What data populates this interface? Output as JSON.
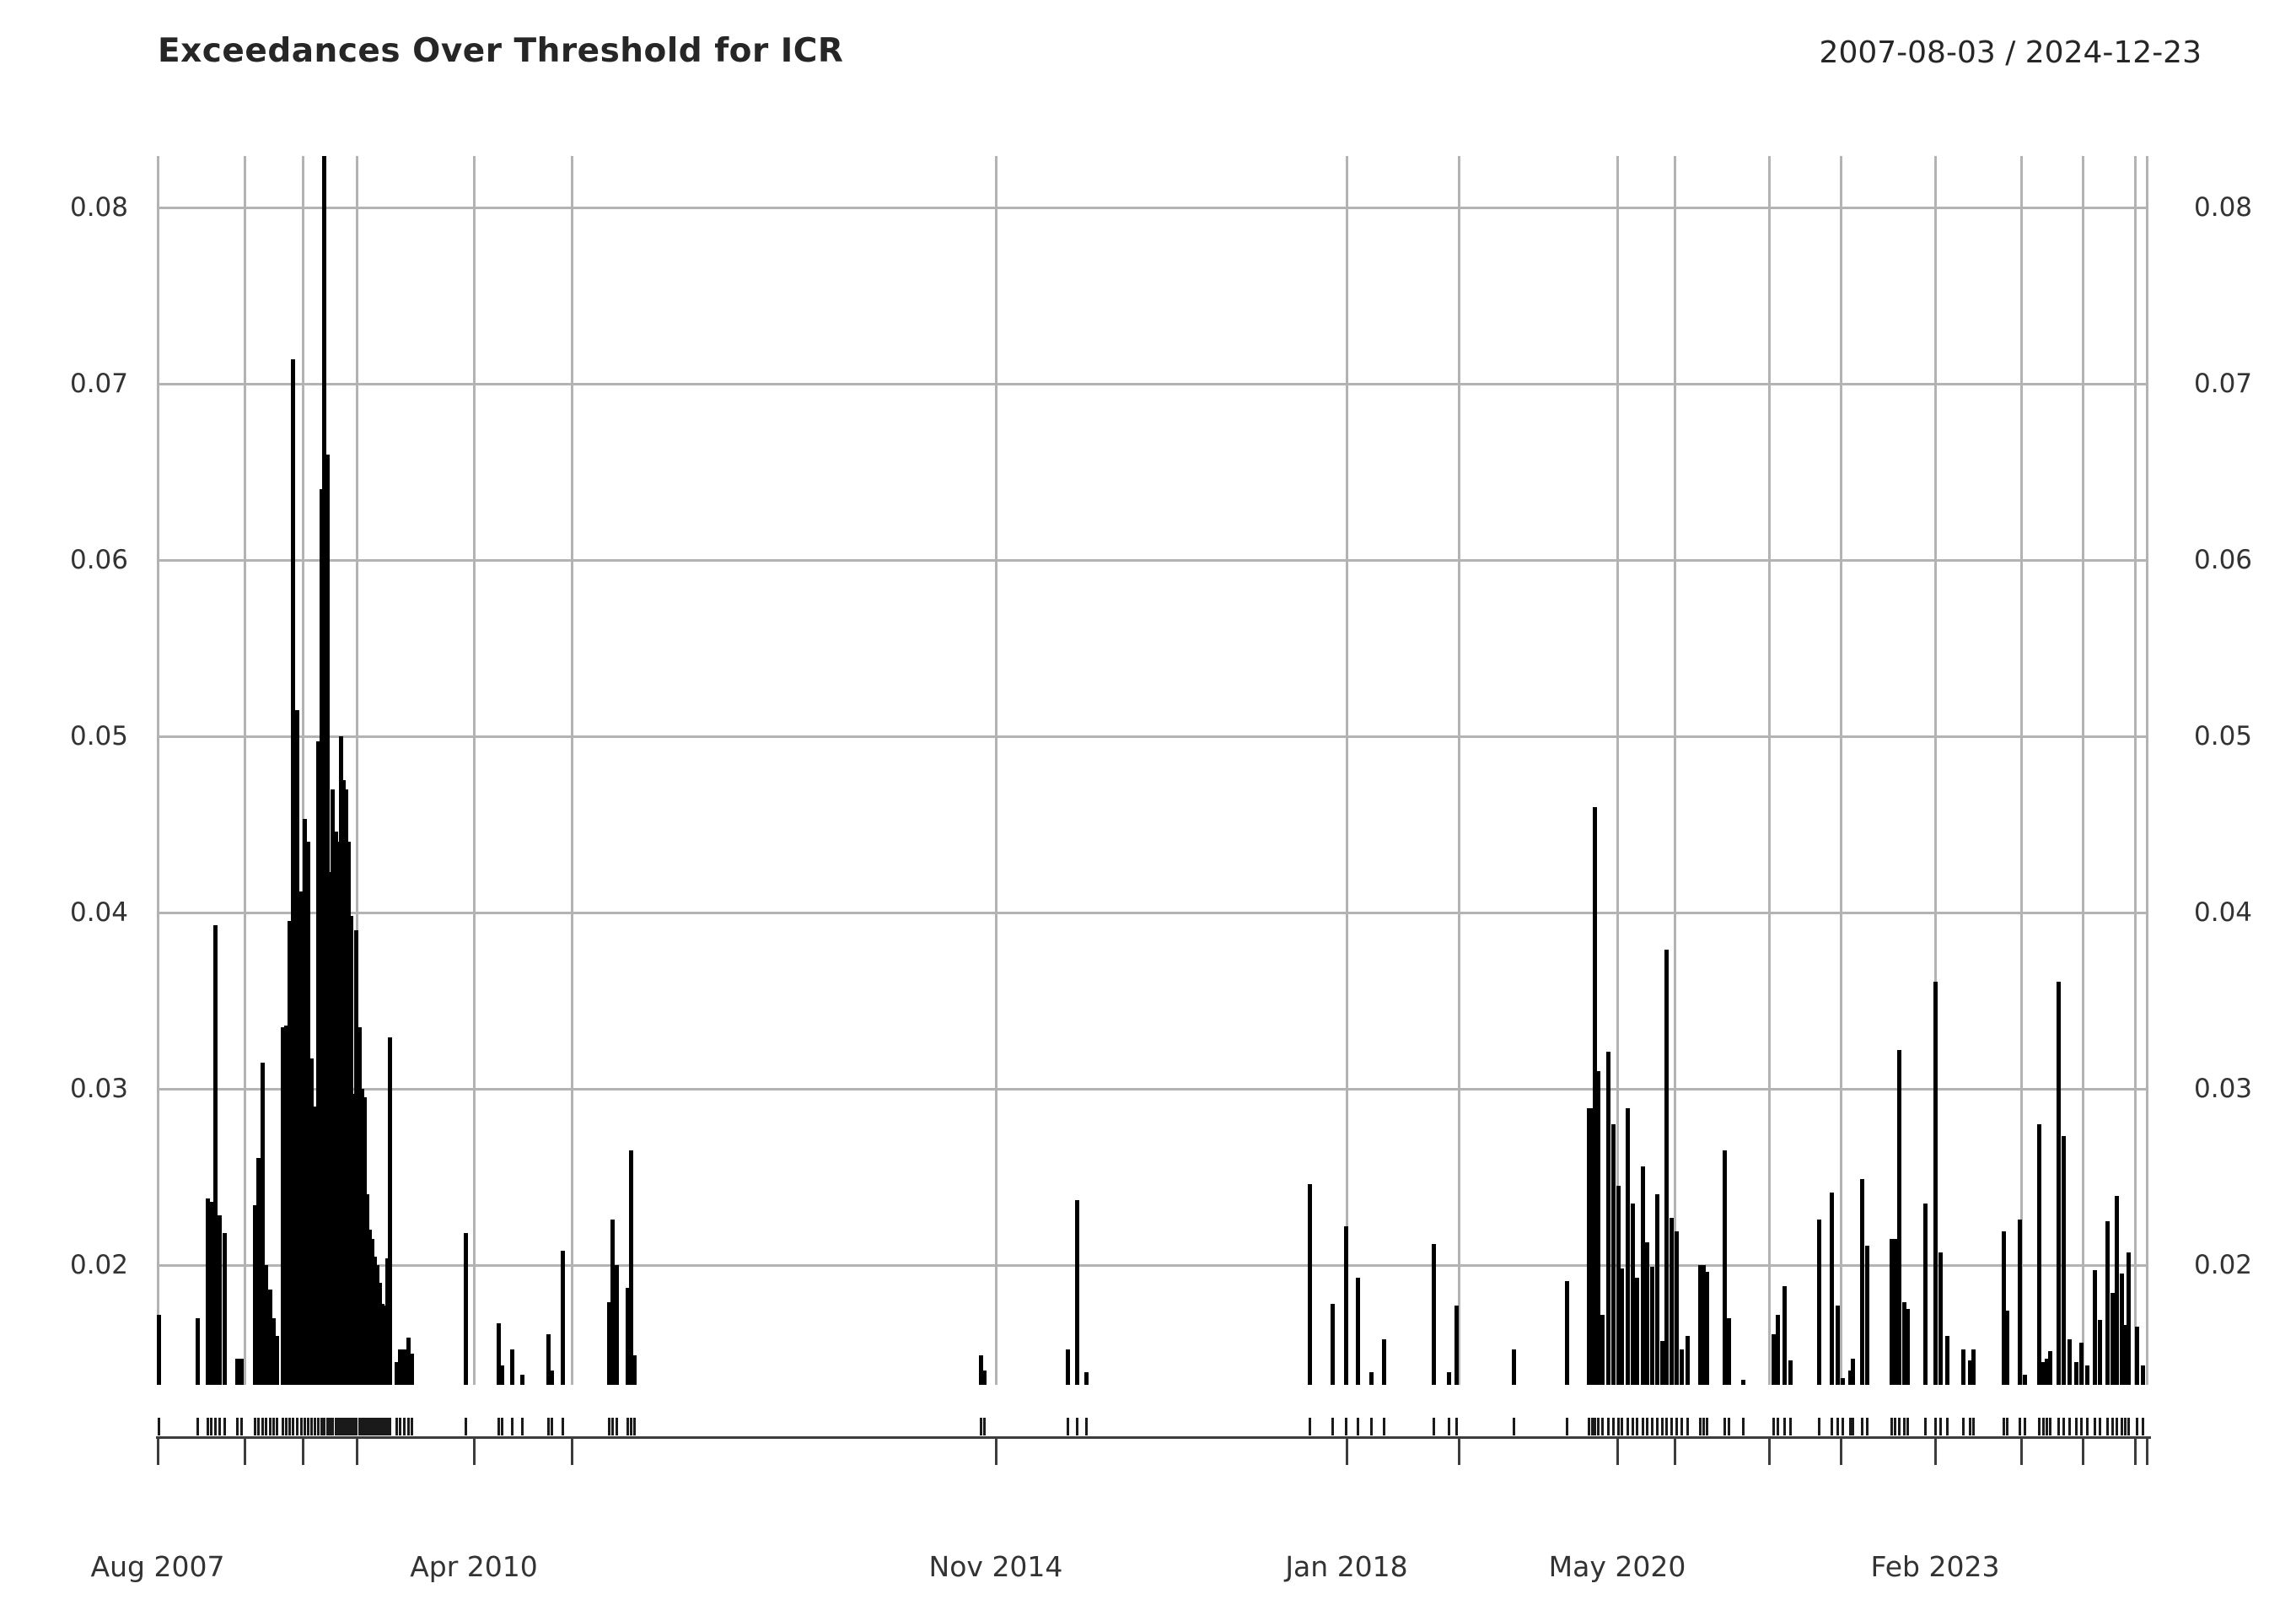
{
  "header": {
    "title": "Exceedances Over Threshold for ICR",
    "date_range": "2007-08-03 / 2024-12-23"
  },
  "colors": {
    "bar": "#000000",
    "grid": "#b3b3b3",
    "axis": "#3c3c3c",
    "text": "#262626",
    "tick_text": "#333333",
    "background": "#ffffff"
  },
  "chart_data": {
    "type": "bar",
    "title": "Exceedances Over Threshold for ICR",
    "subtitle": "2007-08-03 / 2024-12-23",
    "xlabel": "",
    "ylabel": "",
    "x_unit": "event date (irregular, event-index spacing)",
    "ylim": [
      0.0132,
      0.0829
    ],
    "baseline_value": 0.0132,
    "grid": true,
    "legend": "none",
    "rug": "event dates shown as tick rug above x-axis",
    "y_ticks": [
      {
        "value": 0.02,
        "label": "0.02"
      },
      {
        "value": 0.03,
        "label": "0.03"
      },
      {
        "value": 0.04,
        "label": "0.04"
      },
      {
        "value": 0.05,
        "label": "0.05"
      },
      {
        "value": 0.06,
        "label": "0.06"
      },
      {
        "value": 0.07,
        "label": "0.07"
      },
      {
        "value": 0.08,
        "label": "0.08"
      }
    ],
    "x_ticks": [
      {
        "x": 187,
        "label": "Aug 2007"
      },
      {
        "x": 290,
        "label": ""
      },
      {
        "x": 359,
        "label": ""
      },
      {
        "x": 423,
        "label": ""
      },
      {
        "x": 562,
        "label": "Apr 2010"
      },
      {
        "x": 678,
        "label": ""
      },
      {
        "x": 1181,
        "label": "Nov 2014"
      },
      {
        "x": 1597,
        "label": "Jan 2018"
      },
      {
        "x": 1730,
        "label": ""
      },
      {
        "x": 1918,
        "label": "May 2020"
      },
      {
        "x": 1986,
        "label": ""
      },
      {
        "x": 2098,
        "label": ""
      },
      {
        "x": 2183,
        "label": ""
      },
      {
        "x": 2295,
        "label": "Feb 2023"
      },
      {
        "x": 2397,
        "label": ""
      },
      {
        "x": 2470,
        "label": ""
      },
      {
        "x": 2532,
        "label": ""
      },
      {
        "x": 2546,
        "label": ""
      }
    ],
    "bars": [
      [
        188,
        0.0172
      ],
      [
        234,
        0.017
      ],
      [
        246,
        0.0238
      ],
      [
        250,
        0.0236
      ],
      [
        255,
        0.0393
      ],
      [
        260,
        0.0228
      ],
      [
        266,
        0.0218
      ],
      [
        281,
        0.0147
      ],
      [
        286,
        0.0147
      ],
      [
        302,
        0.0234
      ],
      [
        306,
        0.0261
      ],
      [
        311,
        0.0315
      ],
      [
        315,
        0.02
      ],
      [
        320,
        0.0186
      ],
      [
        324,
        0.017
      ],
      [
        328,
        0.016
      ],
      [
        335,
        0.0335
      ],
      [
        339,
        0.0336
      ],
      [
        343,
        0.0395
      ],
      [
        347,
        0.0714
      ],
      [
        352,
        0.0515
      ],
      [
        357,
        0.0412
      ],
      [
        361,
        0.0453
      ],
      [
        365,
        0.044
      ],
      [
        369,
        0.0317
      ],
      [
        373,
        0.029
      ],
      [
        377,
        0.0497
      ],
      [
        381,
        0.064
      ],
      [
        384,
        0.0829
      ],
      [
        388,
        0.066
      ],
      [
        391,
        0.0423
      ],
      [
        394,
        0.047
      ],
      [
        398,
        0.0446
      ],
      [
        401,
        0.044
      ],
      [
        404,
        0.05
      ],
      [
        407,
        0.0475
      ],
      [
        410,
        0.047
      ],
      [
        413,
        0.044
      ],
      [
        416,
        0.0398
      ],
      [
        419,
        0.0297
      ],
      [
        422,
        0.039
      ],
      [
        426,
        0.0335
      ],
      [
        429,
        0.03
      ],
      [
        432,
        0.0295
      ],
      [
        435,
        0.024
      ],
      [
        438,
        0.022
      ],
      [
        441,
        0.0215
      ],
      [
        444,
        0.0205
      ],
      [
        447,
        0.02
      ],
      [
        450,
        0.019
      ],
      [
        453,
        0.0178
      ],
      [
        456,
        0.0177
      ],
      [
        459,
        0.0204
      ],
      [
        462,
        0.0329
      ],
      [
        470,
        0.0145
      ],
      [
        474,
        0.0152
      ],
      [
        479,
        0.0152
      ],
      [
        484,
        0.0159
      ],
      [
        488,
        0.015
      ],
      [
        552,
        0.0218
      ],
      [
        591,
        0.0167
      ],
      [
        595,
        0.0143
      ],
      [
        607,
        0.0152
      ],
      [
        619,
        0.0138
      ],
      [
        650,
        0.0161
      ],
      [
        654,
        0.014
      ],
      [
        667,
        0.0208
      ],
      [
        722,
        0.0179
      ],
      [
        726,
        0.0226
      ],
      [
        731,
        0.02
      ],
      [
        744,
        0.0187
      ],
      [
        748,
        0.0265
      ],
      [
        752,
        0.0149
      ],
      [
        1163,
        0.0149
      ],
      [
        1167,
        0.014
      ],
      [
        1266,
        0.0152
      ],
      [
        1277,
        0.0237
      ],
      [
        1288,
        0.0139
      ],
      [
        1553,
        0.0246
      ],
      [
        1580,
        0.0178
      ],
      [
        1596,
        0.0222
      ],
      [
        1610,
        0.0193
      ],
      [
        1626,
        0.0139
      ],
      [
        1641,
        0.0158
      ],
      [
        1700,
        0.0212
      ],
      [
        1718,
        0.0139
      ],
      [
        1727,
        0.0177
      ],
      [
        1795,
        0.0152
      ],
      [
        1858,
        0.0191
      ],
      [
        1884,
        0.0289
      ],
      [
        1888,
        0.0289
      ],
      [
        1891,
        0.046
      ],
      [
        1895,
        0.031
      ],
      [
        1900,
        0.0172
      ],
      [
        1907,
        0.0321
      ],
      [
        1913,
        0.028
      ],
      [
        1919,
        0.0245
      ],
      [
        1923,
        0.0198
      ],
      [
        1930,
        0.0289
      ],
      [
        1936,
        0.0235
      ],
      [
        1941,
        0.0193
      ],
      [
        1948,
        0.0256
      ],
      [
        1953,
        0.0213
      ],
      [
        1959,
        0.0199
      ],
      [
        1965,
        0.024
      ],
      [
        1971,
        0.0157
      ],
      [
        1976,
        0.0379
      ],
      [
        1982,
        0.0227
      ],
      [
        1988,
        0.0219
      ],
      [
        1994,
        0.0152
      ],
      [
        2001,
        0.016
      ],
      [
        2016,
        0.02
      ],
      [
        2020,
        0.02
      ],
      [
        2024,
        0.0196
      ],
      [
        2045,
        0.0265
      ],
      [
        2050,
        0.017
      ],
      [
        2067,
        0.0135
      ],
      [
        2103,
        0.0161
      ],
      [
        2108,
        0.0172
      ],
      [
        2116,
        0.0188
      ],
      [
        2123,
        0.0146
      ],
      [
        2157,
        0.0226
      ],
      [
        2172,
        0.0241
      ],
      [
        2179,
        0.0177
      ],
      [
        2185,
        0.0136
      ],
      [
        2194,
        0.014
      ],
      [
        2197,
        0.0147
      ],
      [
        2208,
        0.0249
      ],
      [
        2214,
        0.0211
      ],
      [
        2243,
        0.0215
      ],
      [
        2247,
        0.0215
      ],
      [
        2252,
        0.0322
      ],
      [
        2258,
        0.0179
      ],
      [
        2262,
        0.0175
      ],
      [
        2283,
        0.0235
      ],
      [
        2295,
        0.0361
      ],
      [
        2301,
        0.0207
      ],
      [
        2309,
        0.016
      ],
      [
        2328,
        0.0152
      ],
      [
        2336,
        0.0146
      ],
      [
        2340,
        0.0152
      ],
      [
        2376,
        0.0219
      ],
      [
        2380,
        0.0174
      ],
      [
        2395,
        0.0226
      ],
      [
        2401,
        0.0138
      ],
      [
        2418,
        0.028
      ],
      [
        2423,
        0.0145
      ],
      [
        2427,
        0.0147
      ],
      [
        2431,
        0.0151
      ],
      [
        2441,
        0.0361
      ],
      [
        2447,
        0.0273
      ],
      [
        2454,
        0.0158
      ],
      [
        2462,
        0.0145
      ],
      [
        2468,
        0.0156
      ],
      [
        2475,
        0.0143
      ],
      [
        2484,
        0.0197
      ],
      [
        2490,
        0.0169
      ],
      [
        2499,
        0.0225
      ],
      [
        2505,
        0.0184
      ],
      [
        2510,
        0.0239
      ],
      [
        2516,
        0.0195
      ],
      [
        2520,
        0.0166
      ],
      [
        2524,
        0.0207
      ],
      [
        2534,
        0.0165
      ],
      [
        2541,
        0.0143
      ]
    ]
  }
}
